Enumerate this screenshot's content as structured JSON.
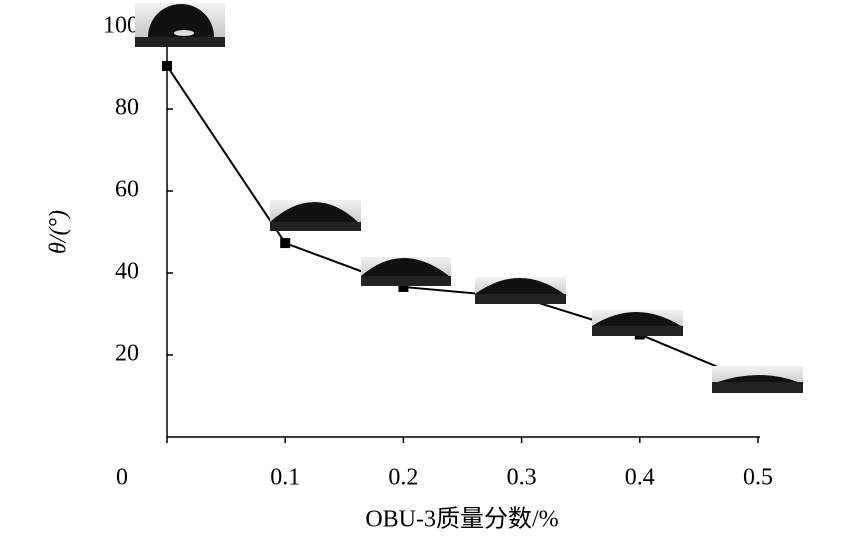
{
  "chart_data": {
    "type": "line",
    "x_label": "OBU-3质量分数/%",
    "y_label": "θ/(°)",
    "x": [
      0,
      0.1,
      0.2,
      0.3,
      0.4,
      0.5
    ],
    "series": [
      {
        "color": "#000000",
        "values": [
          90.5,
          47.3,
          36.6,
          34,
          25,
          13
        ]
      }
    ],
    "xlim": [
      0,
      0.5
    ],
    "xticks": [
      0,
      0.1,
      0.2,
      0.3,
      0.4,
      0.5
    ],
    "ylim": [
      0,
      100
    ],
    "yticks": [
      20,
      40,
      60,
      80,
      100
    ]
  }
}
